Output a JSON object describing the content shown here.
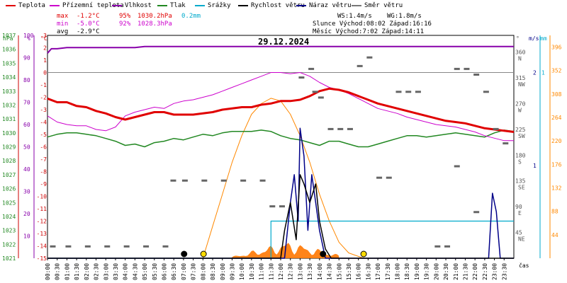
{
  "legend": [
    {
      "label": "Teplota",
      "color": "#e00000"
    },
    {
      "label": "Přízemní teplota",
      "color": "#cc00cc"
    },
    {
      "label": "Vlhkost",
      "color": "#8800aa"
    },
    {
      "label": "Tlak",
      "color": "#228822"
    },
    {
      "label": "Srážky",
      "color": "#00aacc"
    },
    {
      "label": "Rychlost větru",
      "color": "#000000"
    },
    {
      "label": "Náraz větru",
      "color": "#000088"
    },
    {
      "label": "Směr větru",
      "color": "#777777"
    }
  ],
  "stats": {
    "max_label": "max",
    "min_label": "min",
    "avg_label": "avg",
    "max_temp": "-1.2°C",
    "max_hum": "95%",
    "max_press": "1030.2hPa",
    "max_rain": "0.2mm",
    "min_temp": "-5.0°C",
    "min_hum": "92%",
    "min_press": "1028.3hPa",
    "avg_temp": "-2.9°C",
    "ws": "WS:1.4m/s",
    "wg": "WG:1.8m/s",
    "sun": "Slunce Východ:08:02  Západ:16:16",
    "moon": "Měsíc  Východ:7:02  Západ:14:11"
  },
  "date": "29.12.2024",
  "axis_units": {
    "hpa": "hPa",
    "pct": "%",
    "degc": "°C",
    "deg": "°",
    "ms": "m/s",
    "mm": "mm",
    "time": "čas"
  },
  "chart_data": {
    "type": "line",
    "x_ticks": [
      "00:00",
      "00:30",
      "01:00",
      "01:30",
      "02:00",
      "02:30",
      "03:00",
      "03:30",
      "04:00",
      "04:30",
      "05:00",
      "05:30",
      "06:00",
      "06:30",
      "07:00",
      "07:30",
      "08:00",
      "08:30",
      "09:00",
      "09:30",
      "10:00",
      "10:30",
      "11:00",
      "11:30",
      "12:00",
      "12:30",
      "13:00",
      "13:30",
      "14:00",
      "14:30",
      "15:00",
      "15:30",
      "16:00",
      "16:30",
      "17:00",
      "17:30",
      "18:00",
      "18:30",
      "19:00",
      "19:30",
      "20:00",
      "20:30",
      "21:00",
      "21:30",
      "22:00",
      "22:30",
      "23:00",
      "23:30"
    ],
    "axes": {
      "pressure_hpa": {
        "ticks": [
          "1037",
          "1036",
          "1035",
          "1034",
          "1033",
          "1032",
          "1031",
          "1030",
          "1029",
          "1028",
          "1027",
          "1026",
          "1025",
          "1024",
          "1023",
          "1022",
          "1021"
        ],
        "range": [
          1021,
          1037
        ]
      },
      "humidity_pct": {
        "ticks": [
          "100",
          "90",
          "80",
          "70",
          "60",
          "50",
          "40",
          "30",
          "20",
          "10"
        ],
        "range": [
          10,
          100
        ]
      },
      "temperature_c": {
        "ticks": [
          "3",
          "2",
          "1",
          "0",
          "-1",
          "-2",
          "-3",
          "-4",
          "-5",
          "-6",
          "-7",
          "-8",
          "-9",
          "-10",
          "-11",
          "-12",
          "-13",
          "-14",
          "-15"
        ],
        "range": [
          -15,
          3
        ]
      },
      "direction_deg": {
        "ticks": [
          "360",
          "315",
          "270",
          "225",
          "180",
          "135",
          "90",
          "45"
        ],
        "labels": [
          "N",
          "NW",
          "W",
          "SW",
          "S",
          "SE",
          "E",
          "NE"
        ],
        "range": [
          0,
          360
        ]
      },
      "wind_ms": {
        "ticks": [
          "2",
          "1"
        ],
        "range": [
          0,
          2.4
        ]
      },
      "rain_mm": {
        "ticks": [
          "1"
        ],
        "range": [
          0,
          1.2
        ]
      },
      "solar": {
        "ticks": [
          "396",
          "352",
          "308",
          "264",
          "220",
          "176",
          "132",
          "88",
          "44"
        ],
        "range": [
          0,
          418
        ]
      }
    },
    "series": [
      {
        "name": "Teplota",
        "x": [
          0,
          0.5,
          1,
          1.5,
          2,
          2.5,
          3,
          3.5,
          4,
          4.5,
          5,
          5.5,
          6,
          6.5,
          7,
          7.5,
          8,
          8.5,
          9,
          9.5,
          10,
          10.5,
          11,
          11.5,
          12,
          12.5,
          13,
          13.5,
          14,
          14.5,
          15,
          15.5,
          16,
          16.5,
          17,
          17.5,
          18,
          18.5,
          19,
          19.5,
          20,
          20.5,
          21,
          21.5,
          22,
          22.5,
          23,
          23.5,
          24
        ],
        "values": [
          -2.1,
          -2.4,
          -2.4,
          -2.7,
          -2.8,
          -3.1,
          -3.3,
          -3.6,
          -3.8,
          -3.6,
          -3.4,
          -3.2,
          -3.2,
          -3.4,
          -3.4,
          -3.4,
          -3.3,
          -3.2,
          -3.0,
          -2.9,
          -2.8,
          -2.8,
          -2.6,
          -2.5,
          -2.3,
          -2.3,
          -2.2,
          -1.9,
          -1.5,
          -1.3,
          -1.4,
          -1.6,
          -1.9,
          -2.2,
          -2.5,
          -2.7,
          -2.9,
          -3.1,
          -3.3,
          -3.5,
          -3.7,
          -3.9,
          -4.0,
          -4.1,
          -4.3,
          -4.5,
          -4.6,
          -4.7,
          -4.8
        ]
      },
      {
        "name": "Přízemní teplota",
        "x": [
          0,
          0.5,
          1,
          1.5,
          2,
          2.5,
          3,
          3.5,
          4,
          4.5,
          5,
          5.5,
          6,
          6.5,
          7,
          7.5,
          8,
          8.5,
          9,
          9.5,
          10,
          10.5,
          11,
          11.5,
          12,
          12.5,
          13,
          13.5,
          14,
          14.5,
          15,
          15.5,
          16,
          16.5,
          17,
          17.5,
          18,
          18.5,
          19,
          19.5,
          20,
          20.5,
          21,
          21.5,
          22,
          22.5,
          23,
          23.5,
          24
        ],
        "values": [
          -3.5,
          -4.0,
          -4.2,
          -4.3,
          -4.3,
          -4.6,
          -4.7,
          -4.4,
          -3.5,
          -3.2,
          -3.0,
          -2.8,
          -2.9,
          -2.5,
          -2.3,
          -2.2,
          -2.0,
          -1.8,
          -1.5,
          -1.2,
          -0.9,
          -0.6,
          -0.3,
          0.0,
          0.0,
          -0.1,
          0.0,
          -0.3,
          -0.8,
          -1.2,
          -1.4,
          -1.7,
          -2.1,
          -2.5,
          -2.9,
          -3.1,
          -3.3,
          -3.6,
          -3.8,
          -4.0,
          -4.2,
          -4.3,
          -4.4,
          -4.6,
          -4.8,
          -5.1,
          -5.3,
          -5.5,
          -5.5
        ]
      },
      {
        "name": "Vlhkost",
        "x": [
          0,
          0.2,
          0.5,
          1,
          2,
          3,
          4,
          4.5,
          5,
          6,
          8,
          10,
          12,
          14,
          16,
          18,
          20,
          22,
          24
        ],
        "values": [
          92,
          94,
          94,
          94.5,
          94.5,
          94.5,
          94.5,
          94.5,
          95,
          95,
          95,
          95,
          95,
          95,
          95,
          95,
          95,
          95,
          95
        ]
      },
      {
        "name": "Tlak",
        "x": [
          0,
          0.5,
          1,
          1.5,
          2,
          2.5,
          3,
          3.5,
          4,
          4.5,
          5,
          5.5,
          6,
          6.5,
          7,
          7.5,
          8,
          8.5,
          9,
          9.5,
          10,
          10.5,
          11,
          11.5,
          12,
          12.5,
          13,
          13.5,
          14,
          14.5,
          15,
          15.5,
          16,
          16.5,
          17,
          17.5,
          18,
          18.5,
          19,
          19.5,
          20,
          20.5,
          21,
          21.5,
          22,
          22.5,
          23,
          23.5,
          24
        ],
        "values": [
          1029.7,
          1029.9,
          1030.0,
          1030.0,
          1029.9,
          1029.8,
          1029.6,
          1029.4,
          1029.1,
          1029.2,
          1029.0,
          1029.3,
          1029.4,
          1029.6,
          1029.5,
          1029.7,
          1029.9,
          1029.8,
          1030.0,
          1030.1,
          1030.1,
          1030.1,
          1030.2,
          1030.1,
          1029.8,
          1029.6,
          1029.5,
          1029.3,
          1029.1,
          1029.4,
          1029.4,
          1029.2,
          1029.0,
          1029.0,
          1029.2,
          1029.4,
          1029.6,
          1029.8,
          1029.8,
          1029.7,
          1029.8,
          1029.9,
          1030.0,
          1029.9,
          1029.8,
          1029.7,
          1030.0,
          1030.2,
          1030.1
        ]
      },
      {
        "name": "Srážky",
        "x": [
          0,
          11.5,
          11.5,
          24
        ],
        "values": [
          0,
          0,
          0.2,
          0.2
        ]
      },
      {
        "name": "Rychlost větru",
        "x": [
          0,
          12,
          12.2,
          12.5,
          12.8,
          13,
          13.2,
          13.5,
          13.8,
          14,
          14.3,
          14.6,
          15,
          15.2,
          24
        ],
        "values": [
          0,
          0,
          0.3,
          0.6,
          0.2,
          0.9,
          0.8,
          0.6,
          0.8,
          0.4,
          0.1,
          0.0,
          0.0,
          0.0,
          0.0
        ]
      },
      {
        "name": "Náraz větru",
        "x": [
          0,
          12.2,
          12.5,
          12.7,
          12.9,
          13.0,
          13.2,
          13.4,
          13.6,
          13.8,
          14,
          14.3,
          22.7,
          22.9,
          23.1,
          23.3,
          24
        ],
        "values": [
          0,
          0,
          0.6,
          0.9,
          0.4,
          1.4,
          1.1,
          0.3,
          0.9,
          0.6,
          0.3,
          0.0,
          0.0,
          0.7,
          0.5,
          0.0,
          0.0
        ]
      },
      {
        "name": "Směr větru",
        "points": [
          [
            0.2,
            20
          ],
          [
            1,
            20
          ],
          [
            2,
            20
          ],
          [
            3,
            20
          ],
          [
            4,
            20
          ],
          [
            5,
            20
          ],
          [
            6,
            20
          ],
          [
            6.4,
            135
          ],
          [
            7,
            135
          ],
          [
            8,
            135
          ],
          [
            9,
            135
          ],
          [
            10,
            135
          ],
          [
            11,
            135
          ],
          [
            11.5,
            90
          ],
          [
            12,
            90
          ],
          [
            13,
            315
          ],
          [
            13.5,
            330
          ],
          [
            13.7,
            290
          ],
          [
            14,
            280
          ],
          [
            14.5,
            225
          ],
          [
            15,
            225
          ],
          [
            15.5,
            225
          ],
          [
            16,
            335
          ],
          [
            16.5,
            350
          ],
          [
            17,
            140
          ],
          [
            17.5,
            140
          ],
          [
            18,
            290
          ],
          [
            18.5,
            290
          ],
          [
            19,
            290
          ],
          [
            20,
            20
          ],
          [
            20.5,
            20
          ],
          [
            21,
            160
          ],
          [
            21,
            330
          ],
          [
            21.5,
            330
          ],
          [
            22,
            320
          ],
          [
            22,
            80
          ],
          [
            22.5,
            290
          ],
          [
            23,
            225
          ],
          [
            23.5,
            200
          ]
        ]
      },
      {
        "name": "Slunce",
        "x": [
          8.0,
          8.5,
          9,
          9.5,
          10,
          10.5,
          11,
          11.5,
          12,
          12.5,
          13,
          13.5,
          14,
          14.5,
          15,
          15.5,
          16.27
        ],
        "values": [
          0,
          60,
          120,
          180,
          230,
          270,
          290,
          300,
          295,
          270,
          230,
          180,
          120,
          70,
          30,
          10,
          0
        ]
      }
    ]
  }
}
